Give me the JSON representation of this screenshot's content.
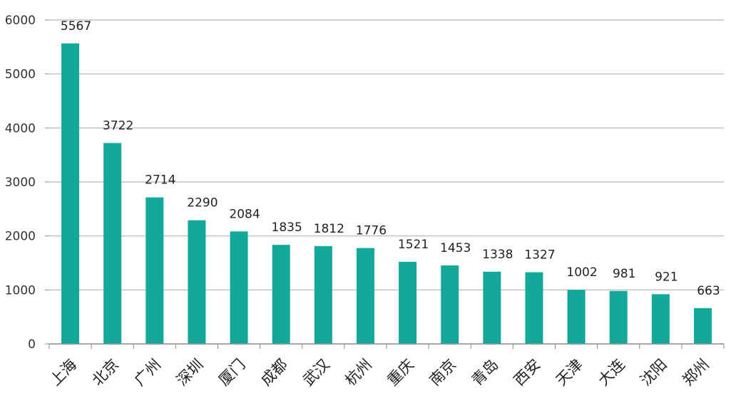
{
  "chart_data": {
    "type": "bar",
    "categories": [
      "上海",
      "北京",
      "广州",
      "深圳",
      "厦门",
      "成都",
      "武汉",
      "杭州",
      "重庆",
      "南京",
      "青岛",
      "西安",
      "天津",
      "大连",
      "沈阳",
      "郑州"
    ],
    "values": [
      5567,
      3722,
      2714,
      2290,
      2084,
      1835,
      1812,
      1776,
      1521,
      1453,
      1338,
      1327,
      1002,
      981,
      921,
      663
    ],
    "ylim": [
      0,
      6000
    ],
    "yticks": [
      0,
      1000,
      2000,
      3000,
      4000,
      5000,
      6000
    ],
    "grid": true,
    "legend": "none",
    "colors": {
      "bar": "#12a89a",
      "grid": "#b3b3b3",
      "axis": "#8c8c8c"
    }
  }
}
